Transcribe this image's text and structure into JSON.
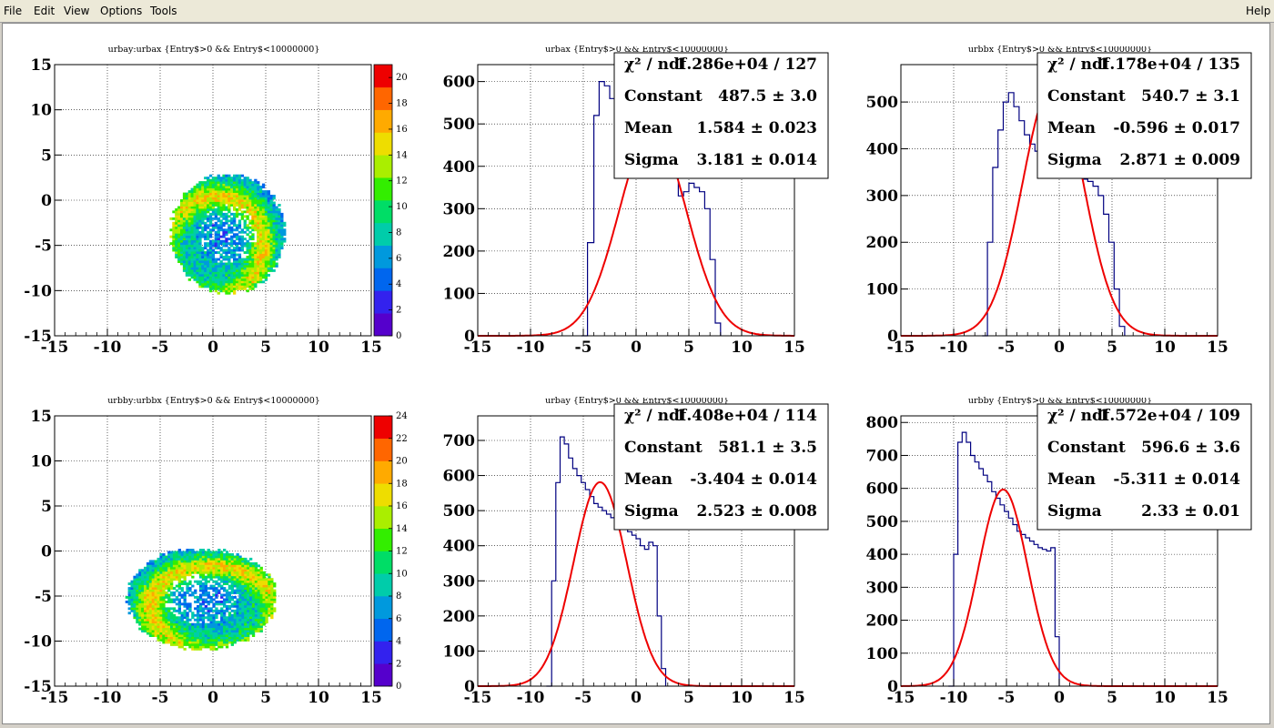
{
  "menu": {
    "file": "File",
    "edit": "Edit",
    "view": "View",
    "options": "Options",
    "tools": "Tools",
    "help": "Help"
  },
  "colors": {
    "histogram": "#000080",
    "fit": "#ee0000",
    "palette": [
      "#5500cc",
      "#3322ee",
      "#0066ee",
      "#0099dd",
      "#00ccaa",
      "#00dd66",
      "#33ee00",
      "#aaee00",
      "#eedd00",
      "#ffaa00",
      "#ff6600",
      "#ee0000"
    ]
  },
  "chart_data": [
    {
      "id": "p1",
      "type": "heatmap",
      "title": "urbay:urbax {Entry$>0 && Entry$<10000000}",
      "xlim": [
        -15,
        15
      ],
      "ylim": [
        -15,
        15
      ],
      "xticks": [
        "-15",
        "-10",
        "-5",
        "0",
        "5",
        "10",
        "15"
      ],
      "yticks": [
        "-15",
        "-10",
        "-5",
        "0",
        "5",
        "10",
        "15"
      ],
      "zmax": 21,
      "zticks": [
        "0",
        "2",
        "4",
        "6",
        "8",
        "10",
        "12",
        "14",
        "16",
        "18",
        "20"
      ],
      "blob": {
        "cx": 1.3,
        "cy": -3.8,
        "rx": 5.4,
        "ry": 6.6,
        "ring_shift": [
          -1.3,
          -1.5
        ]
      },
      "grid": true
    },
    {
      "id": "p2",
      "type": "line",
      "title": "urbax {Entry$>0 && Entry$<10000000}",
      "xlim": [
        -15,
        15
      ],
      "ylim": [
        0,
        640
      ],
      "xticks": [
        "-15",
        "-10",
        "-5",
        "0",
        "5",
        "10",
        "15"
      ],
      "yticks": [
        "0",
        "100",
        "200",
        "300",
        "400",
        "500",
        "600"
      ],
      "hist": {
        "x": [
          -5.2,
          -4.6,
          -4.0,
          -3.5,
          -3.0,
          -2.5,
          -2.0,
          -1.5,
          -1.0,
          -0.5,
          0.0,
          0.5,
          1.0,
          1.5,
          2.0,
          2.5,
          3.0,
          3.5,
          4.0,
          4.5,
          5.0,
          5.5,
          6.0,
          6.5,
          7.0,
          7.5,
          8.0
        ],
        "y": [
          0,
          220,
          520,
          600,
          590,
          560,
          530,
          500,
          480,
          470,
          450,
          440,
          430,
          420,
          410,
          400,
          390,
          375,
          330,
          340,
          360,
          350,
          340,
          300,
          180,
          30,
          0
        ]
      },
      "fit": {
        "constant": 487.5,
        "mean": 1.584,
        "sigma": 3.181
      },
      "stats": {
        "chi2_label": "χ² / ndf",
        "chi2": "1.286e+04 / 127",
        "constant_label": "Constant",
        "constant": "487.5 ± 3.0",
        "mean_label": "Mean",
        "mean": "1.584 ± 0.023",
        "sigma_label": "Sigma",
        "sigma": "3.181 ± 0.014"
      },
      "grid": true
    },
    {
      "id": "p3",
      "type": "line",
      "title": "urbbx {Entry$>0 && Entry$<10000000}",
      "xlim": [
        -15,
        15
      ],
      "ylim": [
        0,
        580
      ],
      "xticks": [
        "-15",
        "-10",
        "-5",
        "0",
        "5",
        "10",
        "15"
      ],
      "yticks": [
        "0",
        "100",
        "200",
        "300",
        "400",
        "500"
      ],
      "hist": {
        "x": [
          -7.3,
          -6.8,
          -6.3,
          -5.8,
          -5.3,
          -4.8,
          -4.3,
          -3.8,
          -3.3,
          -2.8,
          -2.3,
          -1.8,
          -1.3,
          -0.8,
          -0.3,
          0.2,
          0.7,
          1.2,
          1.7,
          2.2,
          2.7,
          3.2,
          3.7,
          4.2,
          4.7,
          5.2,
          5.7,
          6.2
        ],
        "y": [
          0,
          200,
          360,
          440,
          500,
          520,
          490,
          460,
          430,
          410,
          395,
          385,
          375,
          365,
          360,
          355,
          350,
          345,
          340,
          335,
          330,
          320,
          300,
          260,
          200,
          100,
          20,
          0
        ]
      },
      "fit": {
        "constant": 540.7,
        "mean": -0.596,
        "sigma": 2.871
      },
      "stats": {
        "chi2_label": "χ² / ndf",
        "chi2": "1.178e+04 / 135",
        "constant_label": "Constant",
        "constant": "540.7 ± 3.1",
        "mean_label": "Mean",
        "mean": "-0.596 ± 0.017",
        "sigma_label": "Sigma",
        "sigma": "2.871 ± 0.009"
      },
      "grid": true
    },
    {
      "id": "p4",
      "type": "heatmap",
      "title": "urbby:urbbx {Entry$>0 && Entry$<10000000}",
      "xlim": [
        -15,
        15
      ],
      "ylim": [
        -15,
        15
      ],
      "xticks": [
        "-15",
        "-10",
        "-5",
        "0",
        "5",
        "10",
        "15"
      ],
      "yticks": [
        "-15",
        "-10",
        "-5",
        "0",
        "5",
        "10",
        "15"
      ],
      "zmax": 24,
      "zticks": [
        "0",
        "2",
        "4",
        "6",
        "8",
        "10",
        "12",
        "14",
        "16",
        "18",
        "20",
        "22",
        "24"
      ],
      "blob": {
        "cx": -1.2,
        "cy": -5.4,
        "rx": 7.1,
        "ry": 5.6,
        "ring_shift": [
          1.2,
          -1.2
        ]
      },
      "grid": true
    },
    {
      "id": "p5",
      "type": "line",
      "title": "urbay {Entry$>0 && Entry$<10000000}",
      "xlim": [
        -15,
        15
      ],
      "ylim": [
        0,
        770
      ],
      "xticks": [
        "-15",
        "-10",
        "-5",
        "0",
        "5",
        "10",
        "15"
      ],
      "yticks": [
        "0",
        "100",
        "200",
        "300",
        "400",
        "500",
        "600",
        "700"
      ],
      "hist": {
        "x": [
          -8.5,
          -8.0,
          -7.6,
          -7.2,
          -6.8,
          -6.4,
          -6.0,
          -5.6,
          -5.2,
          -4.8,
          -4.4,
          -4.0,
          -3.6,
          -3.2,
          -2.8,
          -2.4,
          -2.0,
          -1.6,
          -1.2,
          -0.8,
          -0.4,
          0.0,
          0.4,
          0.8,
          1.2,
          1.6,
          2.0,
          2.4,
          2.8
        ],
        "y": [
          0,
          300,
          580,
          710,
          690,
          650,
          620,
          600,
          580,
          560,
          540,
          520,
          510,
          500,
          490,
          480,
          470,
          460,
          450,
          440,
          430,
          420,
          400,
          390,
          410,
          400,
          200,
          50,
          0
        ]
      },
      "fit": {
        "constant": 581.1,
        "mean": -3.404,
        "sigma": 2.523
      },
      "stats": {
        "chi2_label": "χ² / ndf",
        "chi2": "1.408e+04 / 114",
        "constant_label": "Constant",
        "constant": "581.1 ± 3.5",
        "mean_label": "Mean",
        "mean": "-3.404 ± 0.014",
        "sigma_label": "Sigma",
        "sigma": "2.523 ± 0.008"
      },
      "grid": true
    },
    {
      "id": "p6",
      "type": "line",
      "title": "urbby {Entry$>0 && Entry$<10000000}",
      "xlim": [
        -15,
        15
      ],
      "ylim": [
        0,
        820
      ],
      "xticks": [
        "-15",
        "-10",
        "-5",
        "0",
        "5",
        "10",
        "15"
      ],
      "yticks": [
        "0",
        "100",
        "200",
        "300",
        "400",
        "500",
        "600",
        "700",
        "800"
      ],
      "hist": {
        "x": [
          -10.5,
          -10.0,
          -9.6,
          -9.2,
          -8.8,
          -8.4,
          -8.0,
          -7.6,
          -7.2,
          -6.8,
          -6.4,
          -6.0,
          -5.6,
          -5.2,
          -4.8,
          -4.4,
          -4.0,
          -3.6,
          -3.2,
          -2.8,
          -2.4,
          -2.0,
          -1.6,
          -1.2,
          -0.8,
          -0.4,
          0.0
        ],
        "y": [
          0,
          400,
          740,
          770,
          740,
          700,
          680,
          660,
          640,
          620,
          590,
          570,
          550,
          530,
          510,
          490,
          470,
          460,
          450,
          440,
          430,
          420,
          415,
          410,
          420,
          150,
          0
        ]
      },
      "fit": {
        "constant": 596.6,
        "mean": -5.311,
        "sigma": 2.33
      },
      "stats": {
        "chi2_label": "χ² / ndf",
        "chi2": "1.572e+04 / 109",
        "constant_label": "Constant",
        "constant": "596.6 ± 3.6",
        "mean_label": "Mean",
        "mean": "-5.311 ± 0.014",
        "sigma_label": "Sigma",
        "sigma": "2.33 ± 0.01"
      },
      "grid": true
    }
  ]
}
